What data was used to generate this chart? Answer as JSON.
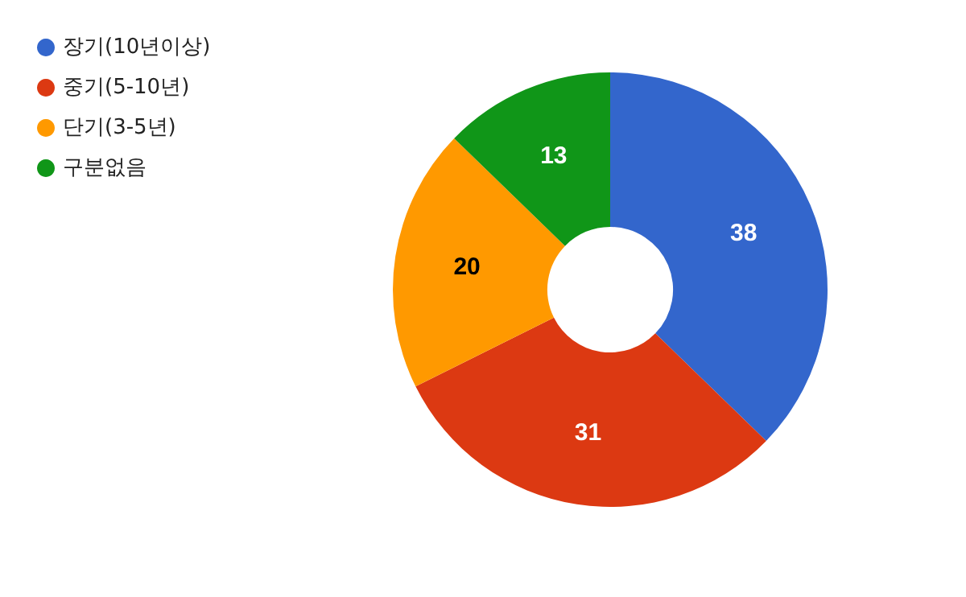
{
  "chart_data": {
    "type": "donut",
    "categories": [
      "장기(10년이상)",
      "중기(5-10년)",
      "단기(3-5년)",
      "구분없음"
    ],
    "values": [
      38,
      31,
      20,
      13
    ],
    "colors": [
      "#3366cc",
      "#dc3912",
      "#ff9900",
      "#109618"
    ],
    "data_labels": true,
    "legend": "top left"
  }
}
